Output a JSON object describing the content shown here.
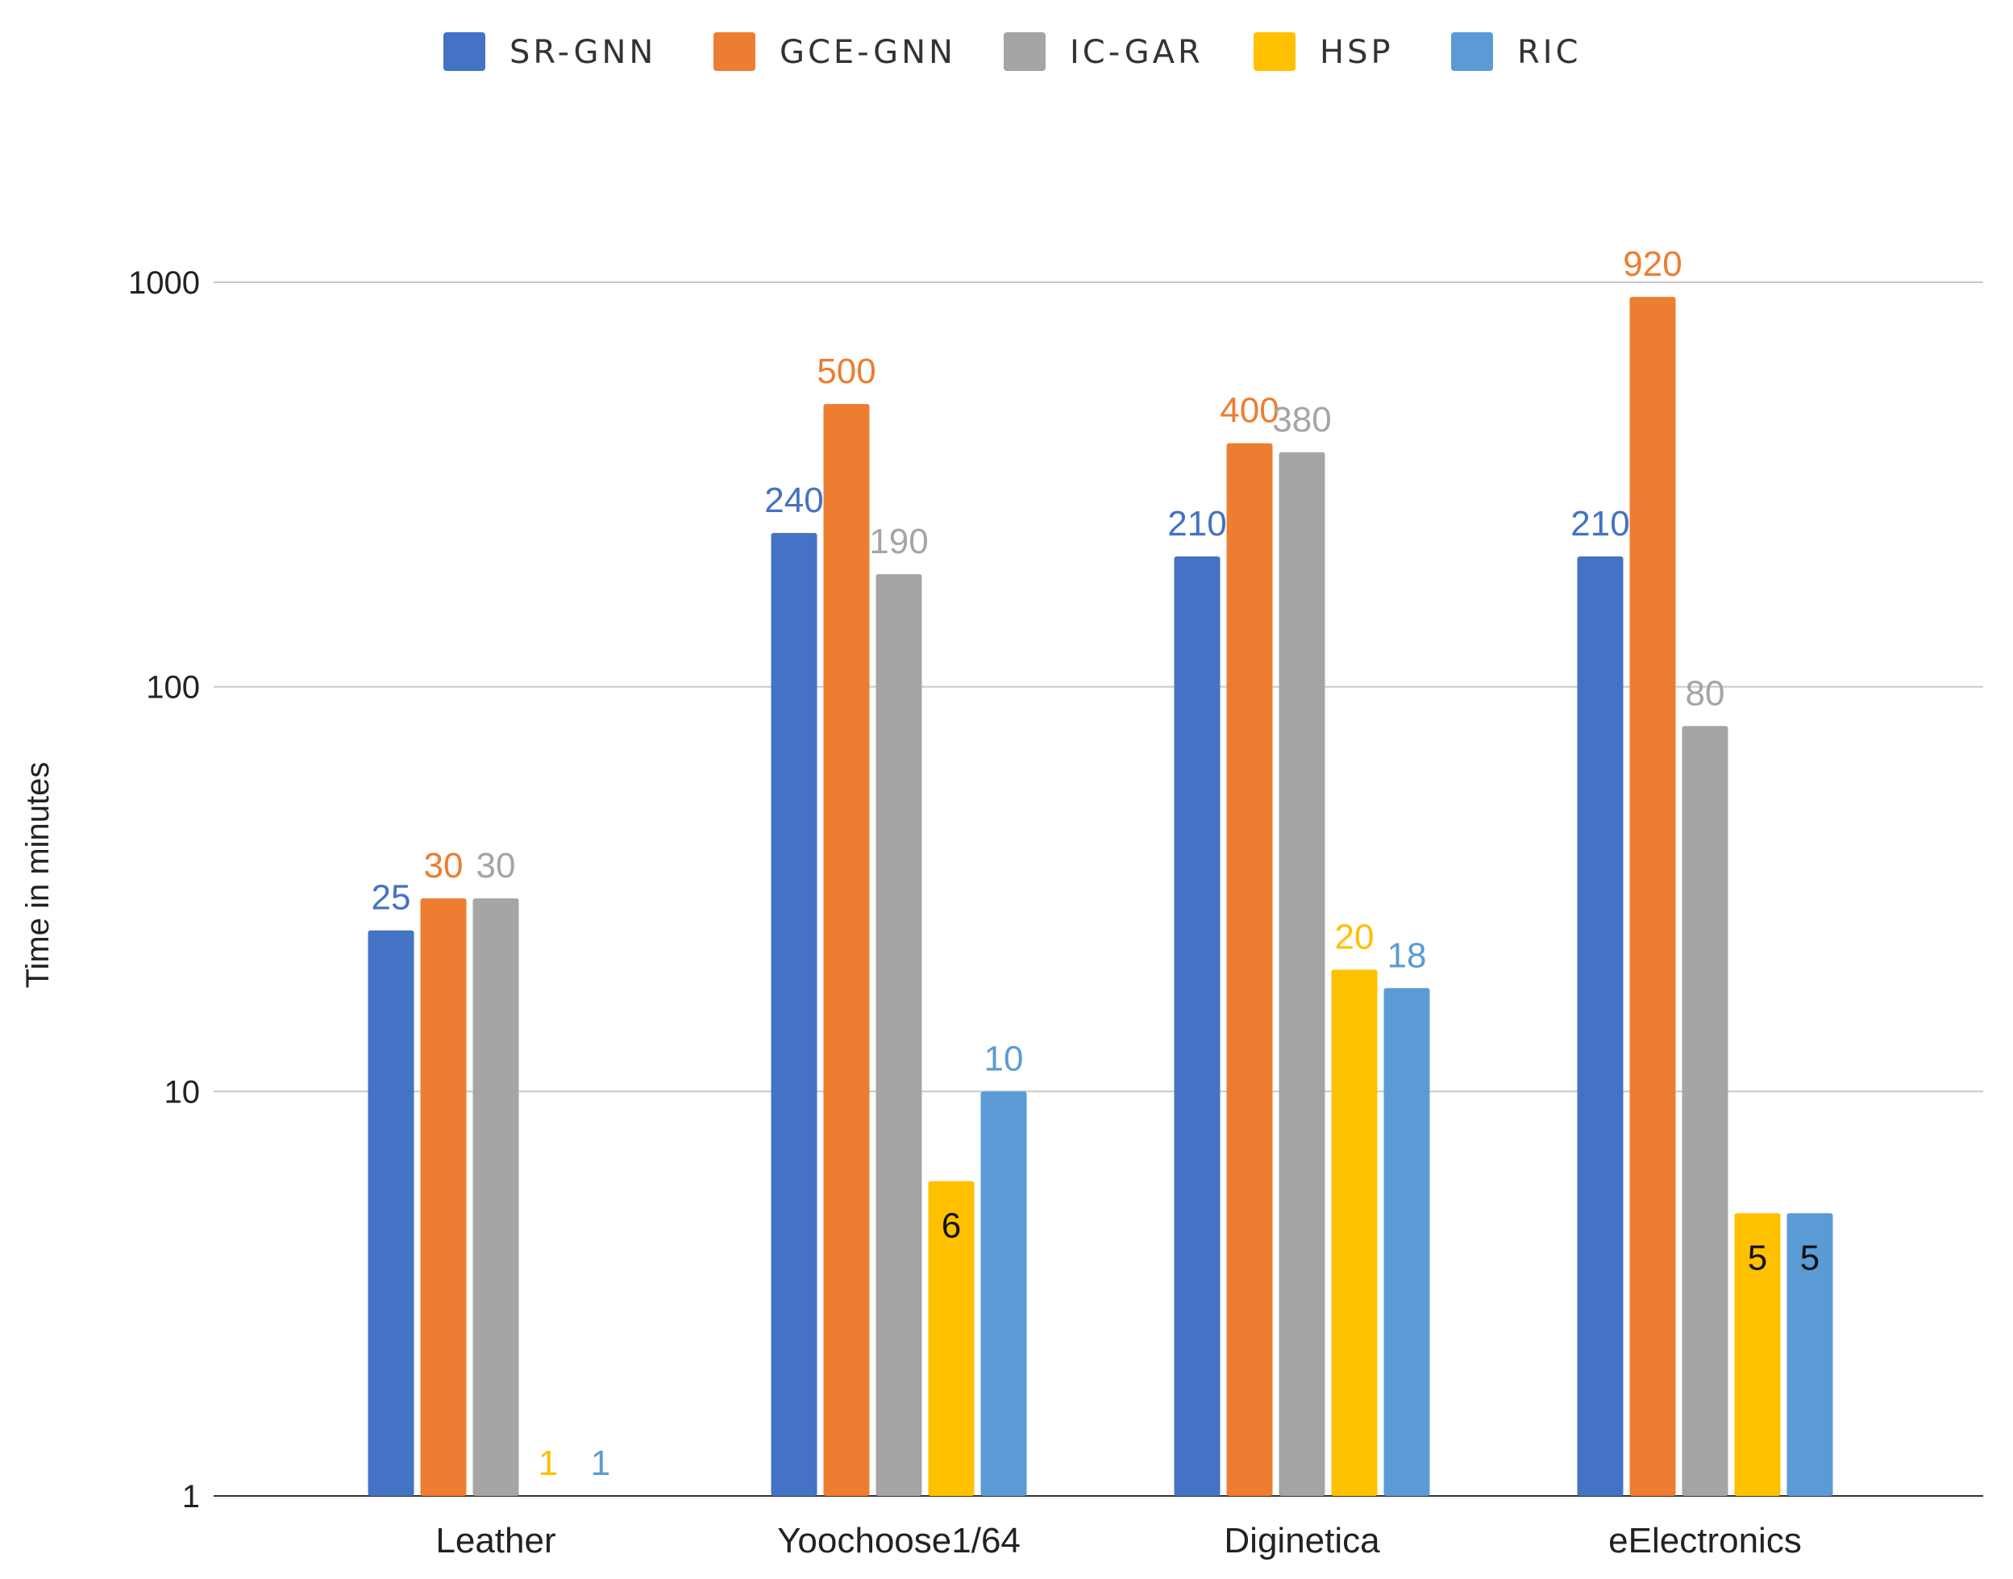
{
  "chart_data": {
    "type": "bar",
    "scale": "log",
    "title": "",
    "xlabel": "",
    "ylabel": "Time in minutes",
    "ylim": [
      1,
      1000
    ],
    "yticks": [
      {
        "value": 1,
        "label": "1"
      },
      {
        "value": 10,
        "label": "10"
      },
      {
        "value": 100,
        "label": "100"
      },
      {
        "value": 1000,
        "label": "1000"
      }
    ],
    "grid": true,
    "legend_position": "top",
    "categories": [
      "Leather",
      "Yoochoose1/64",
      "Diginetica",
      "eElectronics"
    ],
    "series": [
      {
        "name": "SR-GNN",
        "color": "#4472c4",
        "label_color": "#4472c4",
        "values": [
          25,
          240,
          210,
          210
        ],
        "labels": [
          "25",
          "240",
          "210",
          "210"
        ]
      },
      {
        "name": "GCE-GNN",
        "color": "#ed7d31",
        "label_color": "#ed7d31",
        "values": [
          30,
          500,
          400,
          920
        ],
        "labels": [
          "30",
          "500",
          "400",
          "920"
        ]
      },
      {
        "name": "IC-GAR",
        "color": "#a5a5a5",
        "label_color": "#a5a5a5",
        "values": [
          30,
          190,
          380,
          80
        ],
        "labels": [
          "30",
          "190",
          "380",
          "80"
        ]
      },
      {
        "name": "HSP",
        "color": "#ffc000",
        "label_color": "#ffc000",
        "values": [
          1,
          6,
          20,
          5
        ],
        "labels": [
          "1",
          "6",
          "20",
          "5"
        ]
      },
      {
        "name": "RIC",
        "color": "#5b9bd5",
        "label_color": "#5b9bd5",
        "values": [
          1,
          10,
          18,
          5
        ],
        "labels": [
          "1",
          "10",
          "18",
          "5"
        ]
      }
    ]
  }
}
